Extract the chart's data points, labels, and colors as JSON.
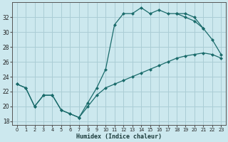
{
  "xlabel": "Humidex (Indice chaleur)",
  "bg_color": "#cce8ee",
  "grid_color": "#aacdd5",
  "line_color": "#1a6b6b",
  "xlim": [
    -0.5,
    23.5
  ],
  "ylim": [
    17.5,
    34.0
  ],
  "xticks": [
    0,
    1,
    2,
    3,
    4,
    5,
    6,
    7,
    8,
    9,
    10,
    11,
    12,
    13,
    14,
    15,
    16,
    17,
    18,
    19,
    20,
    21,
    22,
    23
  ],
  "yticks": [
    18,
    20,
    22,
    24,
    26,
    28,
    30,
    32
  ],
  "line1_x": [
    0,
    1,
    2,
    3,
    4,
    5,
    6,
    7,
    8,
    9,
    10,
    11,
    12,
    13,
    14,
    15,
    16,
    17,
    18,
    19,
    20,
    21
  ],
  "line1_y": [
    23.0,
    22.5,
    20.0,
    21.5,
    21.5,
    19.5,
    19.0,
    18.5,
    20.5,
    22.5,
    25.0,
    31.0,
    32.5,
    32.5,
    33.3,
    32.5,
    33.0,
    32.5,
    32.5,
    32.5,
    32.0,
    30.5
  ],
  "line2_x": [
    0,
    1,
    2,
    3,
    4,
    5,
    6,
    7,
    8,
    9,
    10,
    11,
    12,
    13,
    14,
    15,
    16,
    17,
    18,
    19,
    20,
    21,
    22,
    23
  ],
  "line2_y": [
    23.0,
    22.5,
    20.0,
    21.5,
    21.5,
    19.5,
    19.0,
    18.5,
    20.0,
    21.5,
    22.5,
    23.0,
    23.5,
    24.0,
    24.5,
    25.0,
    25.5,
    26.0,
    26.5,
    26.8,
    27.0,
    27.2,
    27.0,
    26.5
  ],
  "line3_x": [
    18,
    19,
    20,
    21,
    22,
    23
  ],
  "line3_y": [
    32.5,
    32.0,
    31.5,
    30.5,
    29.0,
    27.0
  ]
}
